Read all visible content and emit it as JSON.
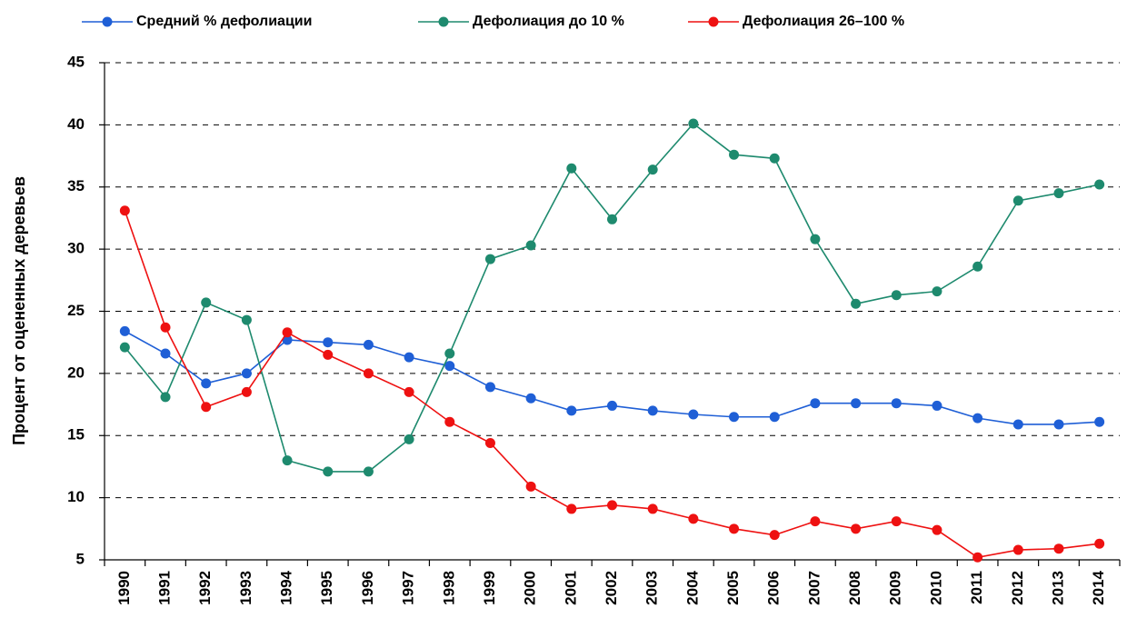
{
  "chart_data": {
    "type": "line",
    "y_label": "Процент от оцененных деревьев",
    "categories": [
      "1990",
      "1991",
      "1992",
      "1993",
      "1994",
      "1995",
      "1996",
      "1997",
      "1998",
      "1999",
      "2000",
      "2001",
      "2002",
      "2003",
      "2004",
      "2005",
      "2006",
      "2007",
      "2008",
      "2009",
      "2010",
      "2011",
      "2012",
      "2013",
      "2014"
    ],
    "series": [
      {
        "name": "Средний % дефолиации",
        "color": "#1f5fd6",
        "values": [
          23.4,
          21.6,
          19.2,
          20.0,
          22.7,
          22.5,
          22.3,
          21.3,
          20.6,
          18.9,
          18.0,
          17.0,
          17.4,
          17.0,
          16.7,
          16.5,
          16.5,
          17.6,
          17.6,
          17.6,
          17.4,
          16.4,
          15.9,
          15.9,
          16.1
        ]
      },
      {
        "name": "Дефолиация до 10 %",
        "color": "#1e8a6e",
        "values": [
          22.1,
          18.1,
          25.7,
          24.3,
          13.0,
          12.1,
          12.1,
          14.7,
          21.6,
          29.2,
          30.3,
          36.5,
          32.4,
          36.4,
          40.1,
          37.6,
          37.3,
          30.8,
          25.6,
          26.3,
          26.6,
          28.6,
          33.9,
          34.5,
          35.2
        ]
      },
      {
        "name": "Дефолиация 26–100 %",
        "color": "#ee1111",
        "values": [
          33.1,
          23.7,
          17.3,
          18.5,
          23.3,
          21.5,
          20.0,
          18.5,
          16.1,
          14.4,
          10.9,
          9.1,
          9.4,
          9.1,
          8.3,
          7.5,
          7.0,
          8.1,
          7.5,
          8.1,
          7.4,
          5.2,
          5.8,
          5.9,
          6.3
        ]
      }
    ],
    "ylim": [
      5,
      45
    ],
    "yticks": [
      5,
      10,
      15,
      20,
      25,
      30,
      35,
      40,
      45
    ],
    "grid": true
  }
}
